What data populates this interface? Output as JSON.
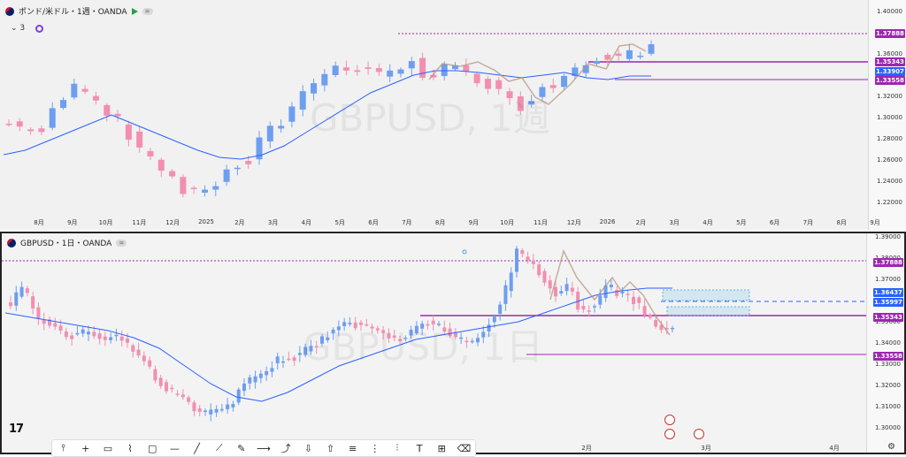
{
  "top_chart": {
    "title": "ポンド/米ドル・1週・OANDA",
    "sub_count": "3",
    "watermark": "GBPUSD, 1週",
    "y_ticks": [
      "1.40000",
      "1.38000",
      "1.36000",
      "1.34000",
      "1.32000",
      "1.30000",
      "1.28000",
      "1.26000",
      "1.24000",
      "1.22000"
    ],
    "x_ticks": [
      "8月",
      "9月",
      "10月",
      "11月",
      "12月",
      "2025",
      "2月",
      "3月",
      "4月",
      "5月",
      "6月",
      "7月",
      "8月",
      "9月",
      "10月",
      "11月",
      "12月",
      "2026",
      "2月",
      "3月",
      "4月",
      "5月",
      "6月",
      "7月",
      "8月",
      "9月"
    ],
    "tags": [
      {
        "label": "1.37888",
        "color": "#9c27b0"
      },
      {
        "label": "1.35343",
        "color": "#9c27b0"
      },
      {
        "label": "1.33907",
        "color": "#2962ff"
      },
      {
        "label": "1.33558",
        "color": "#9c27b0"
      }
    ]
  },
  "bottom_chart": {
    "title": "GBPUSD・1日・OANDA",
    "watermark": "GBPUSD, 1日",
    "y_ticks": [
      "1.39000",
      "1.38000",
      "1.37000",
      "1.36000",
      "1.35000",
      "1.34000",
      "1.33000",
      "1.32000",
      "1.31000",
      "1.30000"
    ],
    "x_ticks": [
      "2月",
      "3月",
      "4月"
    ],
    "tags": [
      {
        "label": "1.37888",
        "color": "#9c27b0"
      },
      {
        "label": "1.36437",
        "color": "#2962ff"
      },
      {
        "label": "1.35997",
        "color": "#2962ff"
      },
      {
        "label": "1.35343",
        "color": "#9c27b0"
      },
      {
        "label": "1.33558",
        "color": "#9c27b0"
      }
    ]
  },
  "colors": {
    "up": "#6d9ef0",
    "down": "#f28fb0",
    "ma": "#2962ff",
    "level": "#9c27b0"
  },
  "tools": [
    "crosshair-icon",
    "cross-icon",
    "comment-icon",
    "polyline-icon",
    "rectangle-icon",
    "hline-icon",
    "trendline-icon",
    "brush-icon",
    "pencil-icon",
    "ray-icon",
    "path-icon",
    "arrow-down-icon",
    "arrow-up-icon",
    "fib-icon",
    "gann-icon",
    "pattern-icon",
    "text-icon",
    "measure-icon",
    "eraser-icon"
  ],
  "logo": "17"
}
